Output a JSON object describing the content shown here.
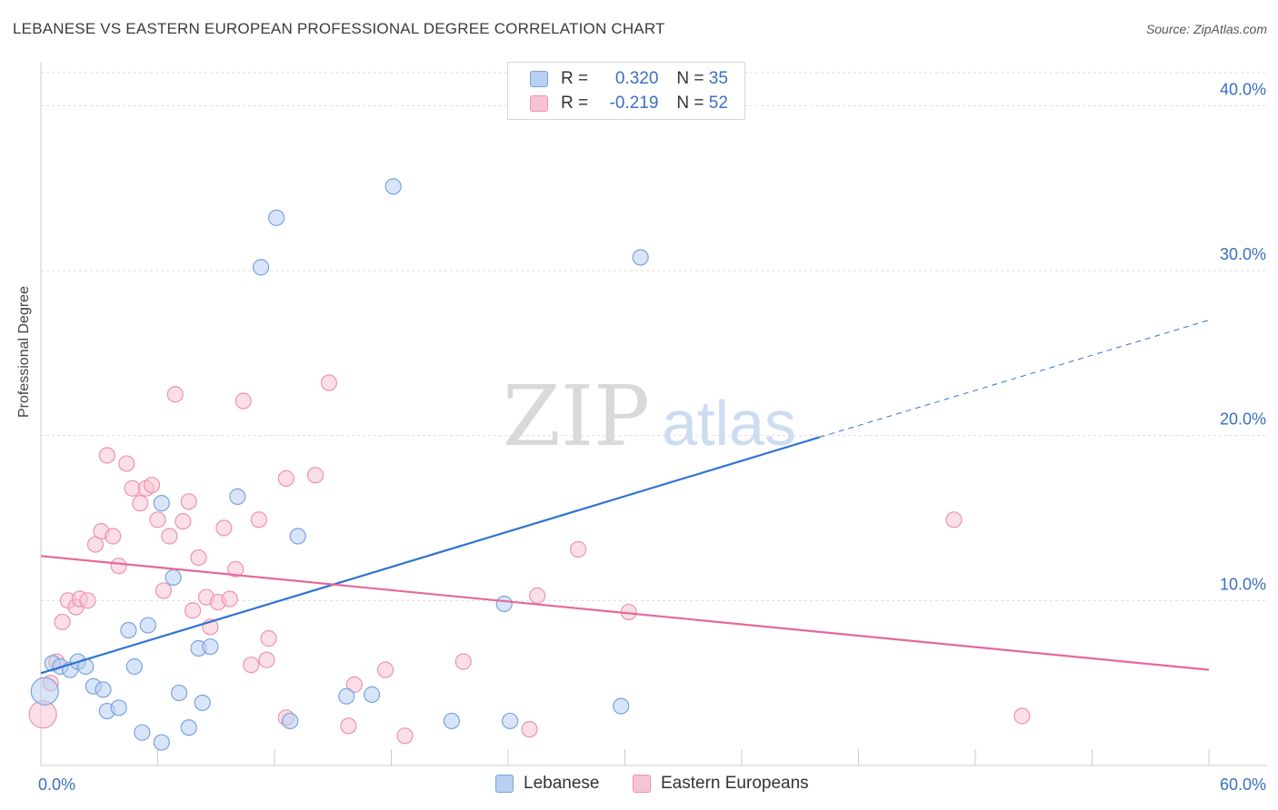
{
  "title": "LEBANESE VS EASTERN EUROPEAN PROFESSIONAL DEGREE CORRELATION CHART",
  "source": "Source: ZipAtlas.com",
  "watermark": {
    "zip": "ZIP",
    "atlas": "atlas"
  },
  "legend": {
    "r_label": "R =",
    "n_label": "N =",
    "lebanese": {
      "r": "0.320",
      "n": "35"
    },
    "eastern": {
      "r": "-0.219",
      "n": "52"
    }
  },
  "colors": {
    "lebanese_fill": "#b8d0f2",
    "lebanese_stroke": "#7aa3dd",
    "lebanese_line": "#2f74d0",
    "eastern_fill": "#f7c4d4",
    "eastern_stroke": "#ec93b0",
    "eastern_line": "#e5689a",
    "tick_label": "#3a6fc4",
    "grid": "#dddddd"
  },
  "chart_data": {
    "type": "scatter",
    "title": "LEBANESE VS EASTERN EUROPEAN PROFESSIONAL DEGREE CORRELATION CHART",
    "xlabel": "",
    "ylabel": "Professional Degree",
    "xlim": [
      0,
      60
    ],
    "ylim": [
      0,
      42
    ],
    "x_tick_labels": [
      "0.0%",
      "60.0%"
    ],
    "y_ticks": [
      10,
      20,
      30,
      40
    ],
    "y_tick_labels": [
      "10.0%",
      "20.0%",
      "30.0%",
      "40.0%"
    ],
    "legend_position": "bottom-center",
    "series": [
      {
        "name": "Lebanese",
        "R": 0.32,
        "N": 35,
        "trend": {
          "x0": 0,
          "y0": 5.6,
          "x1": 40,
          "y1": 19.9,
          "dashed_to_x": 60,
          "dashed_to_y": 27.0
        },
        "points": [
          {
            "x": 0.2,
            "y": 4.5,
            "big": true
          },
          {
            "x": 0.6,
            "y": 6.2
          },
          {
            "x": 1.0,
            "y": 6.0
          },
          {
            "x": 1.5,
            "y": 5.8
          },
          {
            "x": 1.9,
            "y": 6.3
          },
          {
            "x": 2.3,
            "y": 6.0
          },
          {
            "x": 2.7,
            "y": 4.8
          },
          {
            "x": 3.2,
            "y": 4.6
          },
          {
            "x": 3.4,
            "y": 3.3
          },
          {
            "x": 4.0,
            "y": 3.5
          },
          {
            "x": 4.5,
            "y": 8.2
          },
          {
            "x": 4.8,
            "y": 6.0
          },
          {
            "x": 5.2,
            "y": 2.0
          },
          {
            "x": 5.5,
            "y": 8.5
          },
          {
            "x": 6.2,
            "y": 1.4
          },
          {
            "x": 6.2,
            "y": 15.9
          },
          {
            "x": 6.8,
            "y": 11.4
          },
          {
            "x": 7.1,
            "y": 4.4
          },
          {
            "x": 7.6,
            "y": 2.3
          },
          {
            "x": 8.1,
            "y": 7.1
          },
          {
            "x": 8.3,
            "y": 3.8
          },
          {
            "x": 8.7,
            "y": 7.2
          },
          {
            "x": 10.1,
            "y": 16.3
          },
          {
            "x": 11.3,
            "y": 30.2
          },
          {
            "x": 12.1,
            "y": 33.2
          },
          {
            "x": 12.8,
            "y": 2.7
          },
          {
            "x": 13.2,
            "y": 13.9
          },
          {
            "x": 15.7,
            "y": 4.2
          },
          {
            "x": 17.0,
            "y": 4.3
          },
          {
            "x": 18.1,
            "y": 35.1
          },
          {
            "x": 21.1,
            "y": 2.7
          },
          {
            "x": 23.8,
            "y": 9.8
          },
          {
            "x": 24.1,
            "y": 2.7
          },
          {
            "x": 29.8,
            "y": 3.6
          },
          {
            "x": 30.8,
            "y": 30.8
          }
        ]
      },
      {
        "name": "Eastern Europeans",
        "R": -0.219,
        "N": 52,
        "trend": {
          "x0": 0,
          "y0": 12.7,
          "x1": 60,
          "y1": 5.8
        },
        "points": [
          {
            "x": 0.1,
            "y": 3.1,
            "big": true
          },
          {
            "x": 0.5,
            "y": 5.0
          },
          {
            "x": 0.8,
            "y": 6.3
          },
          {
            "x": 1.1,
            "y": 8.7
          },
          {
            "x": 1.4,
            "y": 10.0
          },
          {
            "x": 1.8,
            "y": 9.6
          },
          {
            "x": 2.0,
            "y": 10.1
          },
          {
            "x": 2.4,
            "y": 10.0
          },
          {
            "x": 2.8,
            "y": 13.4
          },
          {
            "x": 3.1,
            "y": 14.2
          },
          {
            "x": 3.4,
            "y": 18.8
          },
          {
            "x": 3.7,
            "y": 13.9
          },
          {
            "x": 4.0,
            "y": 12.1
          },
          {
            "x": 4.4,
            "y": 18.3
          },
          {
            "x": 4.7,
            "y": 16.8
          },
          {
            "x": 5.1,
            "y": 15.9
          },
          {
            "x": 5.4,
            "y": 16.8
          },
          {
            "x": 5.7,
            "y": 17.0
          },
          {
            "x": 6.0,
            "y": 14.9
          },
          {
            "x": 6.3,
            "y": 10.6
          },
          {
            "x": 6.6,
            "y": 13.9
          },
          {
            "x": 6.9,
            "y": 22.5
          },
          {
            "x": 7.3,
            "y": 14.8
          },
          {
            "x": 7.6,
            "y": 16.0
          },
          {
            "x": 7.8,
            "y": 9.4
          },
          {
            "x": 8.1,
            "y": 12.6
          },
          {
            "x": 8.5,
            "y": 10.2
          },
          {
            "x": 8.7,
            "y": 8.4
          },
          {
            "x": 9.1,
            "y": 9.9
          },
          {
            "x": 9.4,
            "y": 14.4
          },
          {
            "x": 9.7,
            "y": 10.1
          },
          {
            "x": 10.0,
            "y": 11.9
          },
          {
            "x": 10.4,
            "y": 22.1
          },
          {
            "x": 10.8,
            "y": 6.1
          },
          {
            "x": 11.2,
            "y": 14.9
          },
          {
            "x": 11.6,
            "y": 6.4
          },
          {
            "x": 11.7,
            "y": 7.7
          },
          {
            "x": 12.6,
            "y": 2.9
          },
          {
            "x": 12.6,
            "y": 17.4
          },
          {
            "x": 14.1,
            "y": 17.6
          },
          {
            "x": 14.8,
            "y": 23.2
          },
          {
            "x": 15.8,
            "y": 2.4
          },
          {
            "x": 16.1,
            "y": 4.9
          },
          {
            "x": 17.7,
            "y": 5.8
          },
          {
            "x": 18.7,
            "y": 1.8
          },
          {
            "x": 21.7,
            "y": 6.3
          },
          {
            "x": 25.1,
            "y": 2.2
          },
          {
            "x": 25.5,
            "y": 10.3
          },
          {
            "x": 27.6,
            "y": 13.1
          },
          {
            "x": 30.2,
            "y": 9.3
          },
          {
            "x": 46.9,
            "y": 14.9
          },
          {
            "x": 50.4,
            "y": 3.0
          }
        ]
      }
    ]
  }
}
